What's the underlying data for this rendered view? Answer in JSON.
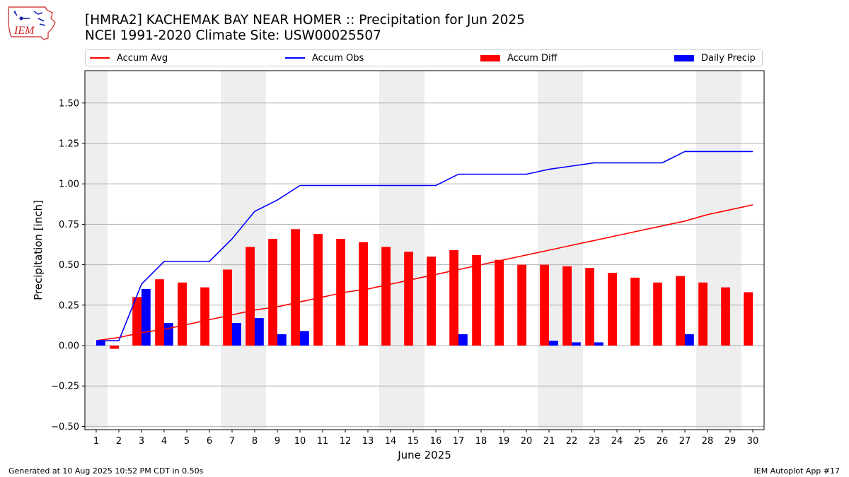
{
  "header": {
    "title_line1": "[HMRA2] KACHEMAK BAY NEAR HOMER :: Precipitation for Jun 2025",
    "title_line2": "NCEI 1991-2020 Climate Site: USW00025507",
    "logo_text": "IEM"
  },
  "footer": {
    "left": "Generated at 10 Aug 2025 10:52 PM CDT in 0.50s",
    "right": "IEM Autoplot App #17"
  },
  "colors": {
    "accum_avg": "#ff0000",
    "accum_obs": "#0000ff",
    "accum_diff": "#ff0000",
    "daily_precip": "#0000ff",
    "weekend_shade": "#eeeeee",
    "grid": "#b0b0b0"
  },
  "chart_data": {
    "type": "bar",
    "xlabel": "June 2025",
    "ylabel": "Precipitation [inch]",
    "ylim": [
      -0.52,
      1.7
    ],
    "yticks": [
      -0.5,
      -0.25,
      0.0,
      0.25,
      0.5,
      0.75,
      1.0,
      1.25,
      1.5
    ],
    "ytick_labels": [
      "−0.50",
      "−0.25",
      "0.00",
      "0.25",
      "0.50",
      "0.75",
      "1.00",
      "1.25",
      "1.50"
    ],
    "x": [
      1,
      2,
      3,
      4,
      5,
      6,
      7,
      8,
      9,
      10,
      11,
      12,
      13,
      14,
      15,
      16,
      17,
      18,
      19,
      20,
      21,
      22,
      23,
      24,
      25,
      26,
      27,
      28,
      29,
      30
    ],
    "grid": "y",
    "legend_position": "top",
    "shaded_days": [
      [
        1,
        1
      ],
      [
        7,
        8
      ],
      [
        14,
        15
      ],
      [
        21,
        22
      ],
      [
        28,
        29
      ]
    ],
    "series": [
      {
        "name": "Accum Avg",
        "type": "line",
        "values": [
          0.03,
          0.05,
          0.08,
          0.1,
          0.13,
          0.16,
          0.19,
          0.22,
          0.24,
          0.27,
          0.3,
          0.33,
          0.35,
          0.38,
          0.41,
          0.44,
          0.47,
          0.5,
          0.53,
          0.56,
          0.59,
          0.62,
          0.65,
          0.68,
          0.71,
          0.74,
          0.77,
          0.81,
          0.84,
          0.87
        ]
      },
      {
        "name": "Accum Obs",
        "type": "line",
        "values": [
          0.03,
          0.03,
          0.38,
          0.52,
          0.52,
          0.52,
          0.66,
          0.83,
          0.9,
          0.99,
          0.99,
          0.99,
          0.99,
          0.99,
          0.99,
          0.99,
          1.06,
          1.06,
          1.06,
          1.06,
          1.09,
          1.11,
          1.13,
          1.13,
          1.13,
          1.13,
          1.2,
          1.2,
          1.2,
          1.2
        ]
      },
      {
        "name": "Accum Diff",
        "type": "bar",
        "values": [
          0.0,
          -0.02,
          0.3,
          0.41,
          0.39,
          0.36,
          0.47,
          0.61,
          0.66,
          0.72,
          0.69,
          0.66,
          0.64,
          0.61,
          0.58,
          0.55,
          0.59,
          0.56,
          0.53,
          0.5,
          0.5,
          0.49,
          0.48,
          0.45,
          0.42,
          0.39,
          0.43,
          0.39,
          0.36,
          0.33
        ]
      },
      {
        "name": "Daily Precip",
        "type": "bar",
        "values": [
          0.03,
          0,
          0.35,
          0.14,
          0,
          0,
          0.14,
          0.17,
          0.07,
          0.09,
          0,
          0,
          0,
          0,
          0,
          0,
          0.07,
          0,
          0,
          0,
          0.03,
          0.02,
          0.02,
          0,
          0,
          0,
          0.07,
          0,
          0,
          0
        ]
      }
    ]
  }
}
